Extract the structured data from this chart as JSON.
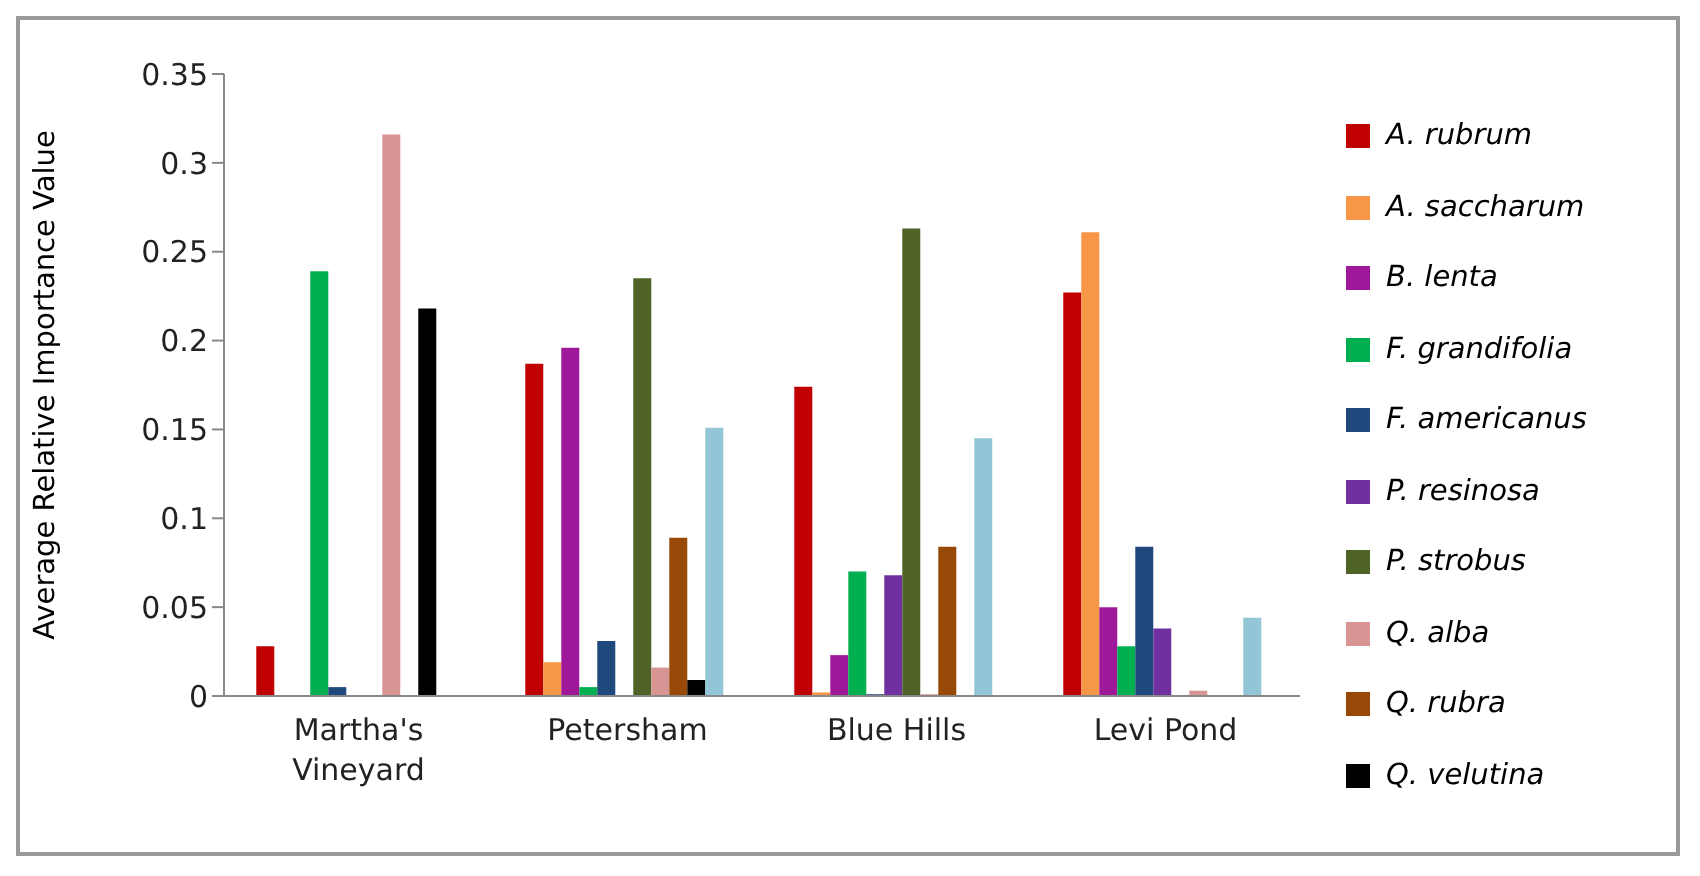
{
  "chart_data": {
    "type": "bar",
    "ylabel": "Average Relative Importance Value",
    "categories": [
      "Martha's Vineyard",
      "Petersham",
      "Blue Hills",
      "Levi Pond"
    ],
    "series": [
      {
        "name": "A. rubrum",
        "color": "#c00000",
        "values": [
          0.028,
          0.187,
          0.174,
          0.227
        ]
      },
      {
        "name": "A. saccharum",
        "color": "#f79646",
        "values": [
          0,
          0.019,
          0.002,
          0.261
        ]
      },
      {
        "name": "B. lenta",
        "color": "#a0189a",
        "values": [
          0,
          0.196,
          0.023,
          0.05
        ]
      },
      {
        "name": "F. grandifolia",
        "color": "#00b050",
        "values": [
          0.239,
          0.005,
          0.07,
          0.028
        ]
      },
      {
        "name": "F. americanus",
        "color": "#1f497d",
        "values": [
          0.005,
          0.031,
          0.001,
          0.084
        ]
      },
      {
        "name": "P. resinosa",
        "color": "#7030a0",
        "values": [
          0,
          0,
          0.068,
          0.038
        ]
      },
      {
        "name": "P. strobus",
        "color": "#4f6228",
        "values": [
          0,
          0.235,
          0.263,
          0
        ]
      },
      {
        "name": "Q. alba",
        "color": "#d99594",
        "values": [
          0.316,
          0.016,
          0.001,
          0.003
        ]
      },
      {
        "name": "Q. rubra",
        "color": "#984807",
        "values": [
          0,
          0.089,
          0.084,
          0
        ]
      },
      {
        "name": "Q. velutina",
        "color": "#000000",
        "values": [
          0.218,
          0.009,
          0,
          0
        ]
      },
      {
        "color": "#92c5d6",
        "values": [
          0,
          0.151,
          0.145,
          0.044
        ]
      }
    ],
    "ylim": [
      0,
      0.35
    ],
    "yticks": [
      0,
      0.05,
      0.1,
      0.15,
      0.2,
      0.25,
      0.3,
      0.35
    ],
    "grid": false,
    "legend": "right"
  }
}
